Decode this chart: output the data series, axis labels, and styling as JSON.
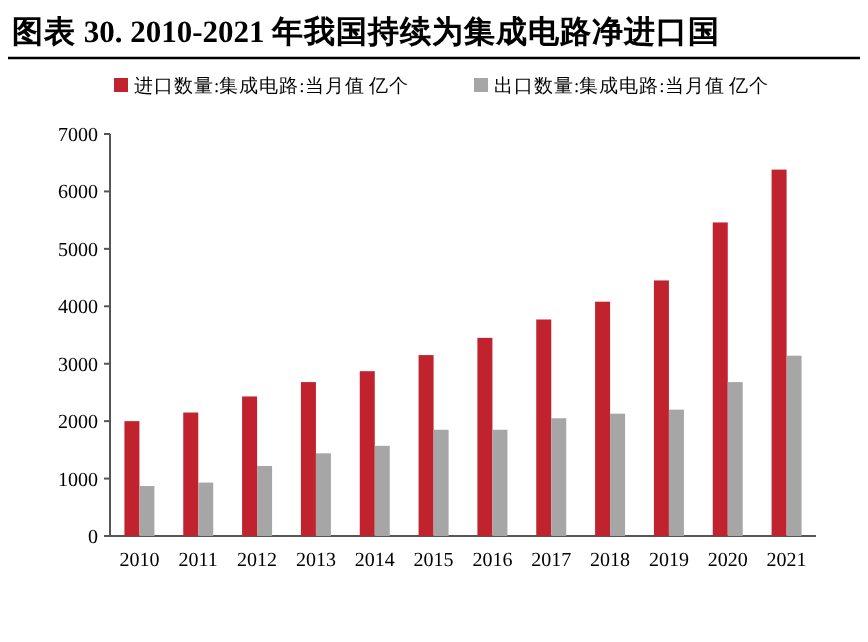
{
  "chart_data": {
    "type": "bar",
    "title": "图表 30. 2010-2021 年我国持续为集成电路净进口国",
    "categories": [
      "2010",
      "2011",
      "2012",
      "2013",
      "2014",
      "2015",
      "2016",
      "2017",
      "2018",
      "2019",
      "2020",
      "2021"
    ],
    "series": [
      {
        "name": "进口数量:集成电路:当月值 亿个",
        "color": "#c0222e",
        "values": [
          2000,
          2150,
          2430,
          2680,
          2870,
          3150,
          3450,
          3770,
          4080,
          4450,
          5460,
          6380
        ]
      },
      {
        "name": "出口数量:集成电路:当月值 亿个",
        "color": "#a6a6a6",
        "values": [
          870,
          930,
          1220,
          1440,
          1570,
          1850,
          1850,
          2050,
          2130,
          2200,
          2680,
          3140
        ]
      }
    ],
    "ylim": [
      0,
      7000
    ],
    "yticks": [
      0,
      1000,
      2000,
      3000,
      4000,
      5000,
      6000,
      7000
    ],
    "legend": "top"
  }
}
